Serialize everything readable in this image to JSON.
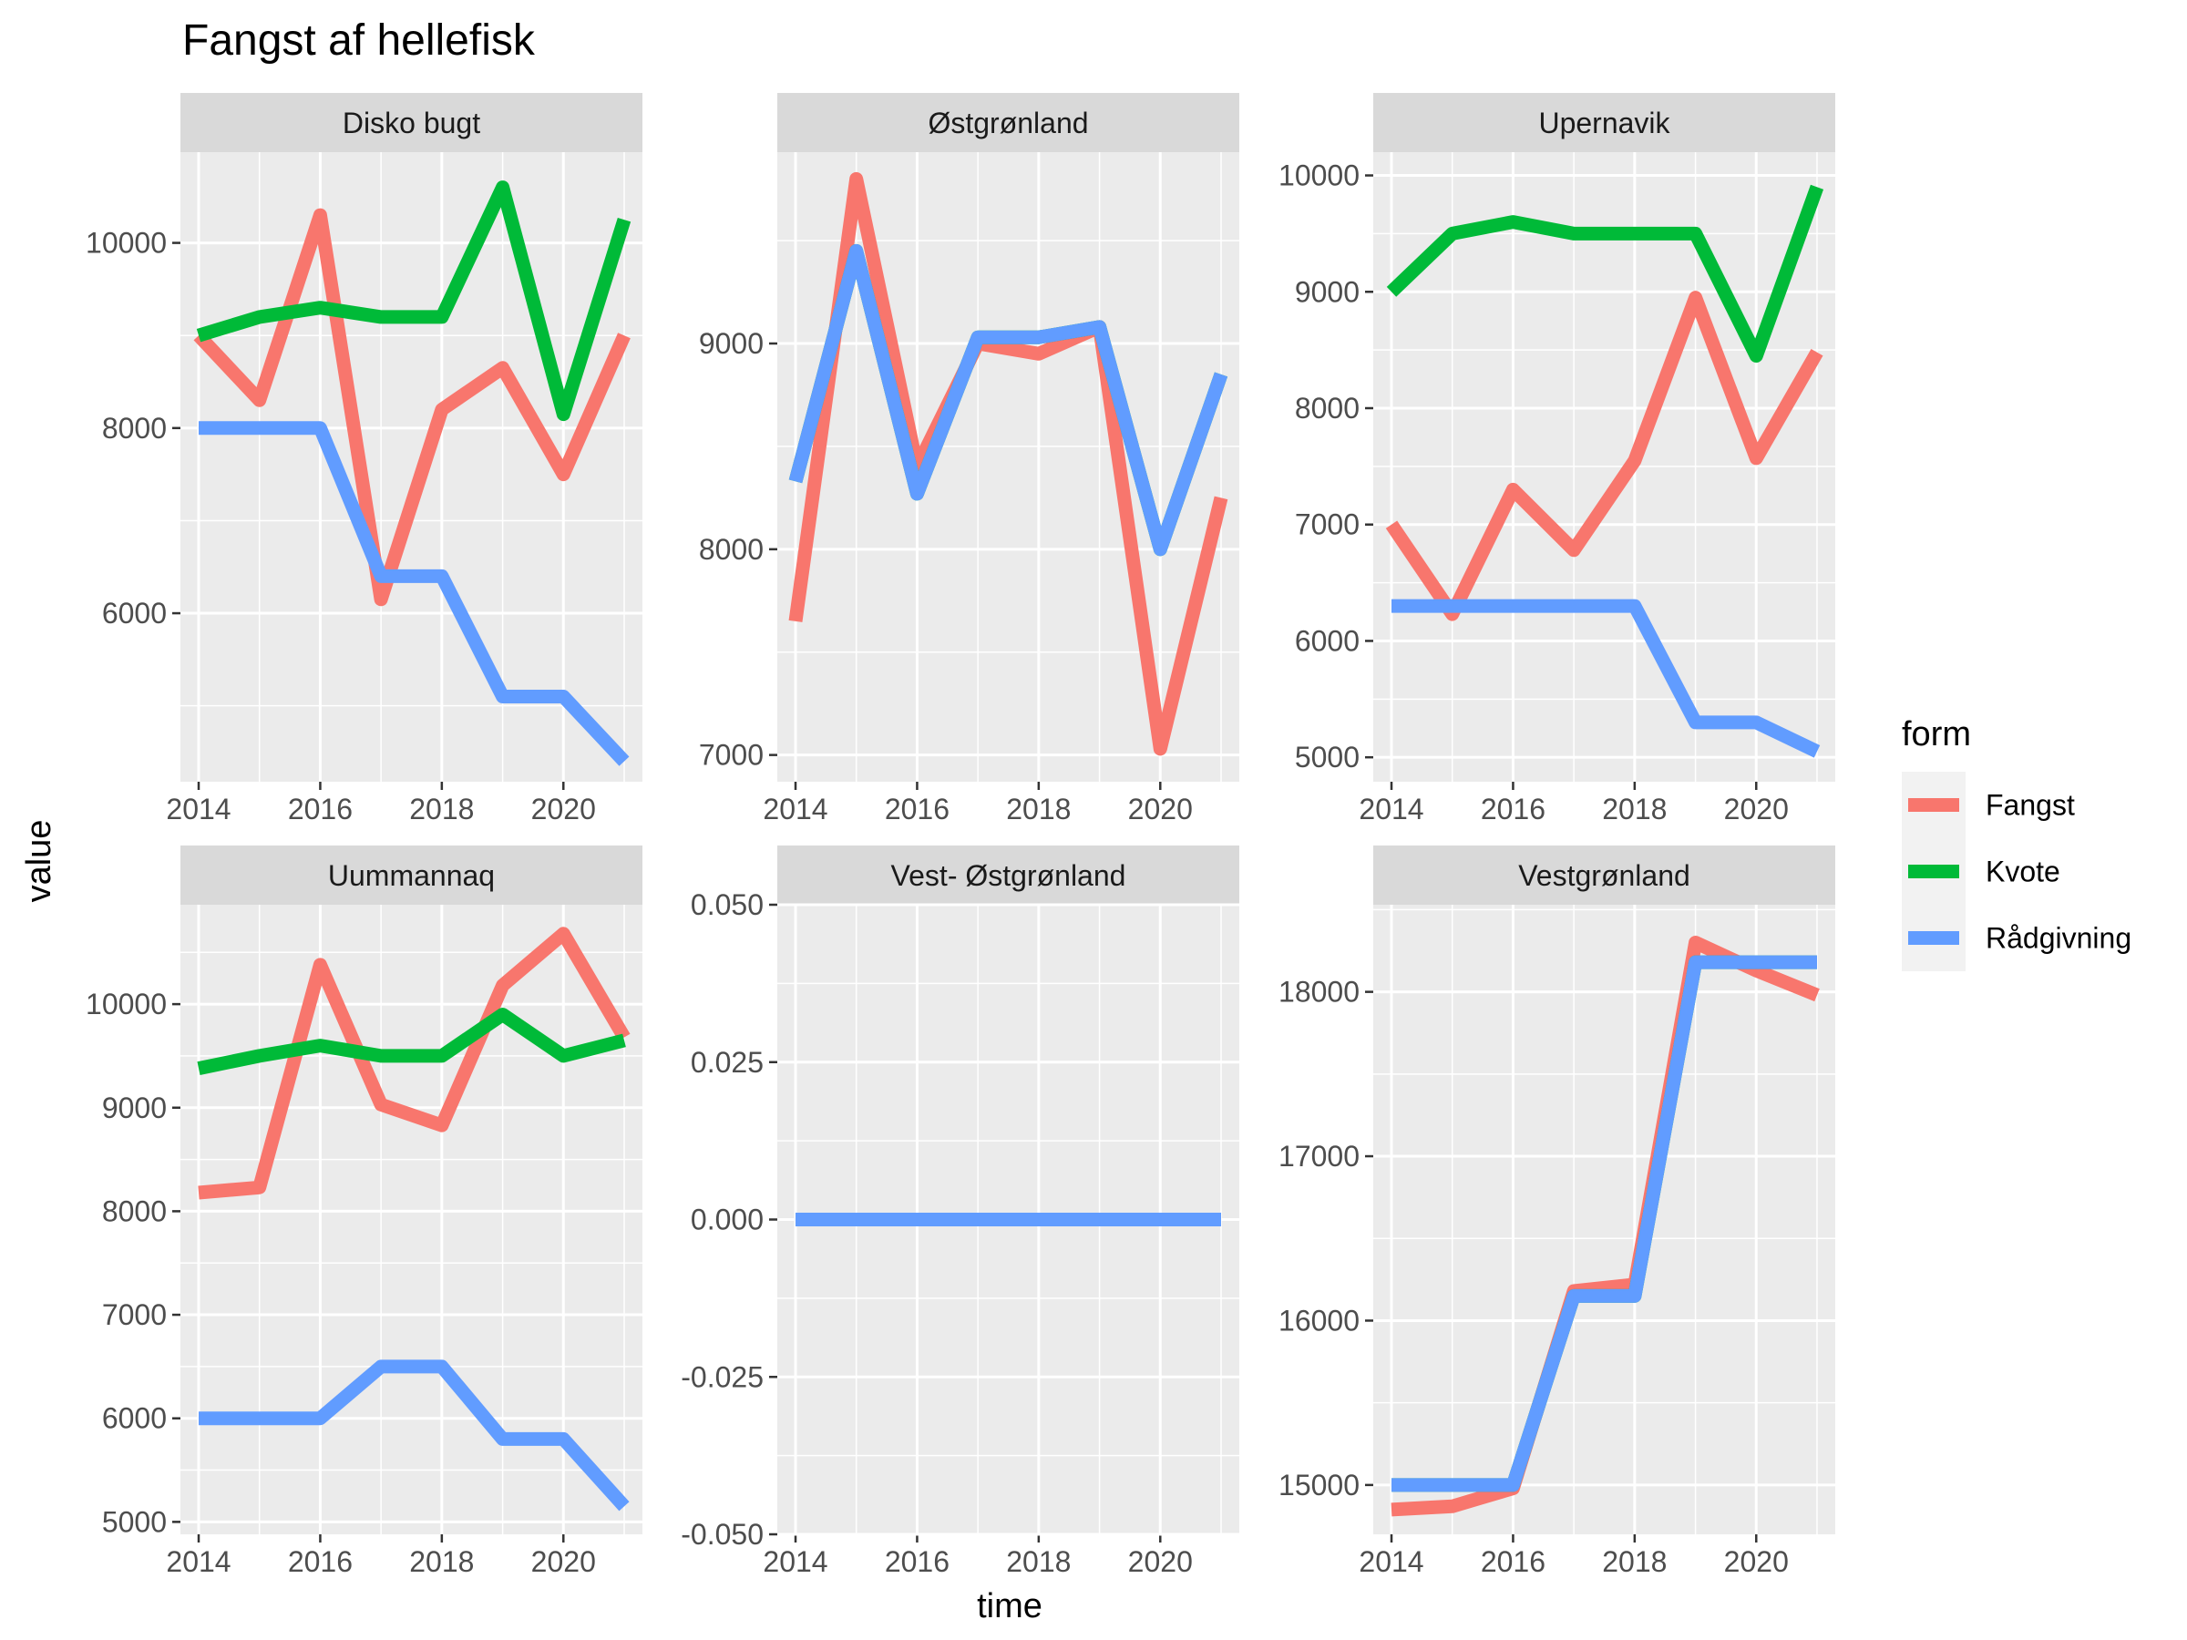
{
  "chart_data": {
    "type": "line",
    "title": "Fangst af hellefisk",
    "xlabel": "time",
    "ylabel": "value",
    "legend": {
      "title": "form",
      "placement": "right",
      "entries": [
        {
          "name": "Fangst",
          "color": "#F8766D"
        },
        {
          "name": "Kvote",
          "color": "#00BA38"
        },
        {
          "name": "Rådgivning",
          "color": "#619CFF"
        }
      ]
    },
    "x": [
      2014,
      2015,
      2016,
      2017,
      2018,
      2019,
      2020,
      2021
    ],
    "x_ticks": [
      2014,
      2016,
      2018,
      2020
    ],
    "xlim": [
      2013.7,
      2021.3
    ],
    "panels": [
      {
        "title": "Disko bugt",
        "ylim": [
          4180,
          10980
        ],
        "y_ticks": [
          6000,
          8000,
          10000
        ],
        "y_tick_labels": [
          "6000",
          "8000",
          "10000"
        ],
        "series": [
          {
            "name": "Fangst",
            "values": [
              9000,
              8300,
              10300,
              6150,
              8200,
              8650,
              7500,
              9000
            ]
          },
          {
            "name": "Kvote",
            "values": [
              9000,
              9200,
              9300,
              9200,
              9200,
              10600,
              8150,
              10250
            ]
          },
          {
            "name": "Rådgivning",
            "values": [
              8000,
              8000,
              8000,
              6400,
              6400,
              5100,
              5100,
              4400
            ]
          }
        ]
      },
      {
        "title": "Østgrønland",
        "ylim": [
          6870,
          9930
        ],
        "y_ticks": [
          7000,
          8000,
          9000
        ],
        "y_tick_labels": [
          "7000",
          "8000",
          "9000"
        ],
        "series": [
          {
            "name": "Fangst",
            "values": [
              7650,
              9800,
              8400,
              9000,
              8950,
              9080,
              7030,
              8250
            ]
          },
          {
            "name": "Kvote",
            "values": [
              8330,
              9450,
              8270,
              9030,
              9030,
              9080,
              8000,
              8850
            ]
          },
          {
            "name": "Rådgivning",
            "values": [
              8330,
              9450,
              8270,
              9030,
              9030,
              9080,
              8000,
              8850
            ]
          }
        ]
      },
      {
        "title": "Upernavik",
        "ylim": [
          4790,
          10200
        ],
        "y_ticks": [
          5000,
          6000,
          7000,
          8000,
          9000,
          10000
        ],
        "y_tick_labels": [
          "5000",
          "6000",
          "7000",
          "8000",
          "9000",
          "10000"
        ],
        "series": [
          {
            "name": "Fangst",
            "values": [
              7000,
              6230,
              7300,
              6780,
              7550,
              8950,
              7570,
              8480
            ]
          },
          {
            "name": "Kvote",
            "values": [
              9000,
              9500,
              9600,
              9500,
              9500,
              9500,
              8450,
              9900
            ]
          },
          {
            "name": "Rådgivning",
            "values": [
              6300,
              6300,
              6300,
              6300,
              6300,
              5300,
              5300,
              5050
            ]
          }
        ]
      },
      {
        "title": "Uummannaq",
        "ylim": [
          4880,
          10960
        ],
        "y_ticks": [
          5000,
          6000,
          7000,
          8000,
          9000,
          10000
        ],
        "y_tick_labels": [
          "5000",
          "6000",
          "7000",
          "8000",
          "9000",
          "10000"
        ],
        "series": [
          {
            "name": "Fangst",
            "values": [
              8180,
              8230,
              10380,
              9030,
              8830,
              10180,
              10680,
              9680
            ]
          },
          {
            "name": "Kvote",
            "values": [
              9380,
              9500,
              9600,
              9500,
              9500,
              9900,
              9500,
              9650
            ]
          },
          {
            "name": "Rådgivning",
            "values": [
              6000,
              6000,
              6000,
              6500,
              6500,
              5800,
              5800,
              5150
            ]
          }
        ]
      },
      {
        "title": "Vest- Østgrønland",
        "ylim": [
          -0.05,
          0.05
        ],
        "y_ticks": [
          -0.05,
          -0.025,
          0,
          0.025,
          0.05
        ],
        "y_tick_labels": [
          "-0.050",
          "-0.025",
          "0.000",
          "0.025",
          "0.050"
        ],
        "series": [
          {
            "name": "Rådgivning",
            "values": [
              0,
              0,
              0,
              0,
              0,
              0,
              0,
              0
            ]
          }
        ]
      },
      {
        "title": "Vestgrønland",
        "ylim": [
          14700,
          18530
        ],
        "y_ticks": [
          15000,
          16000,
          17000,
          18000
        ],
        "y_tick_labels": [
          "15000",
          "16000",
          "17000",
          "18000"
        ],
        "series": [
          {
            "name": "Fangst",
            "values": [
              14850,
              14870,
              14980,
              16180,
              16220,
              18300,
              18130,
              17980
            ]
          },
          {
            "name": "Kvote",
            "values": [
              15000,
              15000,
              15000,
              16150,
              16150,
              18180,
              18180,
              18180
            ]
          },
          {
            "name": "Rådgivning",
            "values": [
              15000,
              15000,
              15000,
              16150,
              16150,
              18180,
              18180,
              18180
            ]
          }
        ]
      }
    ]
  }
}
